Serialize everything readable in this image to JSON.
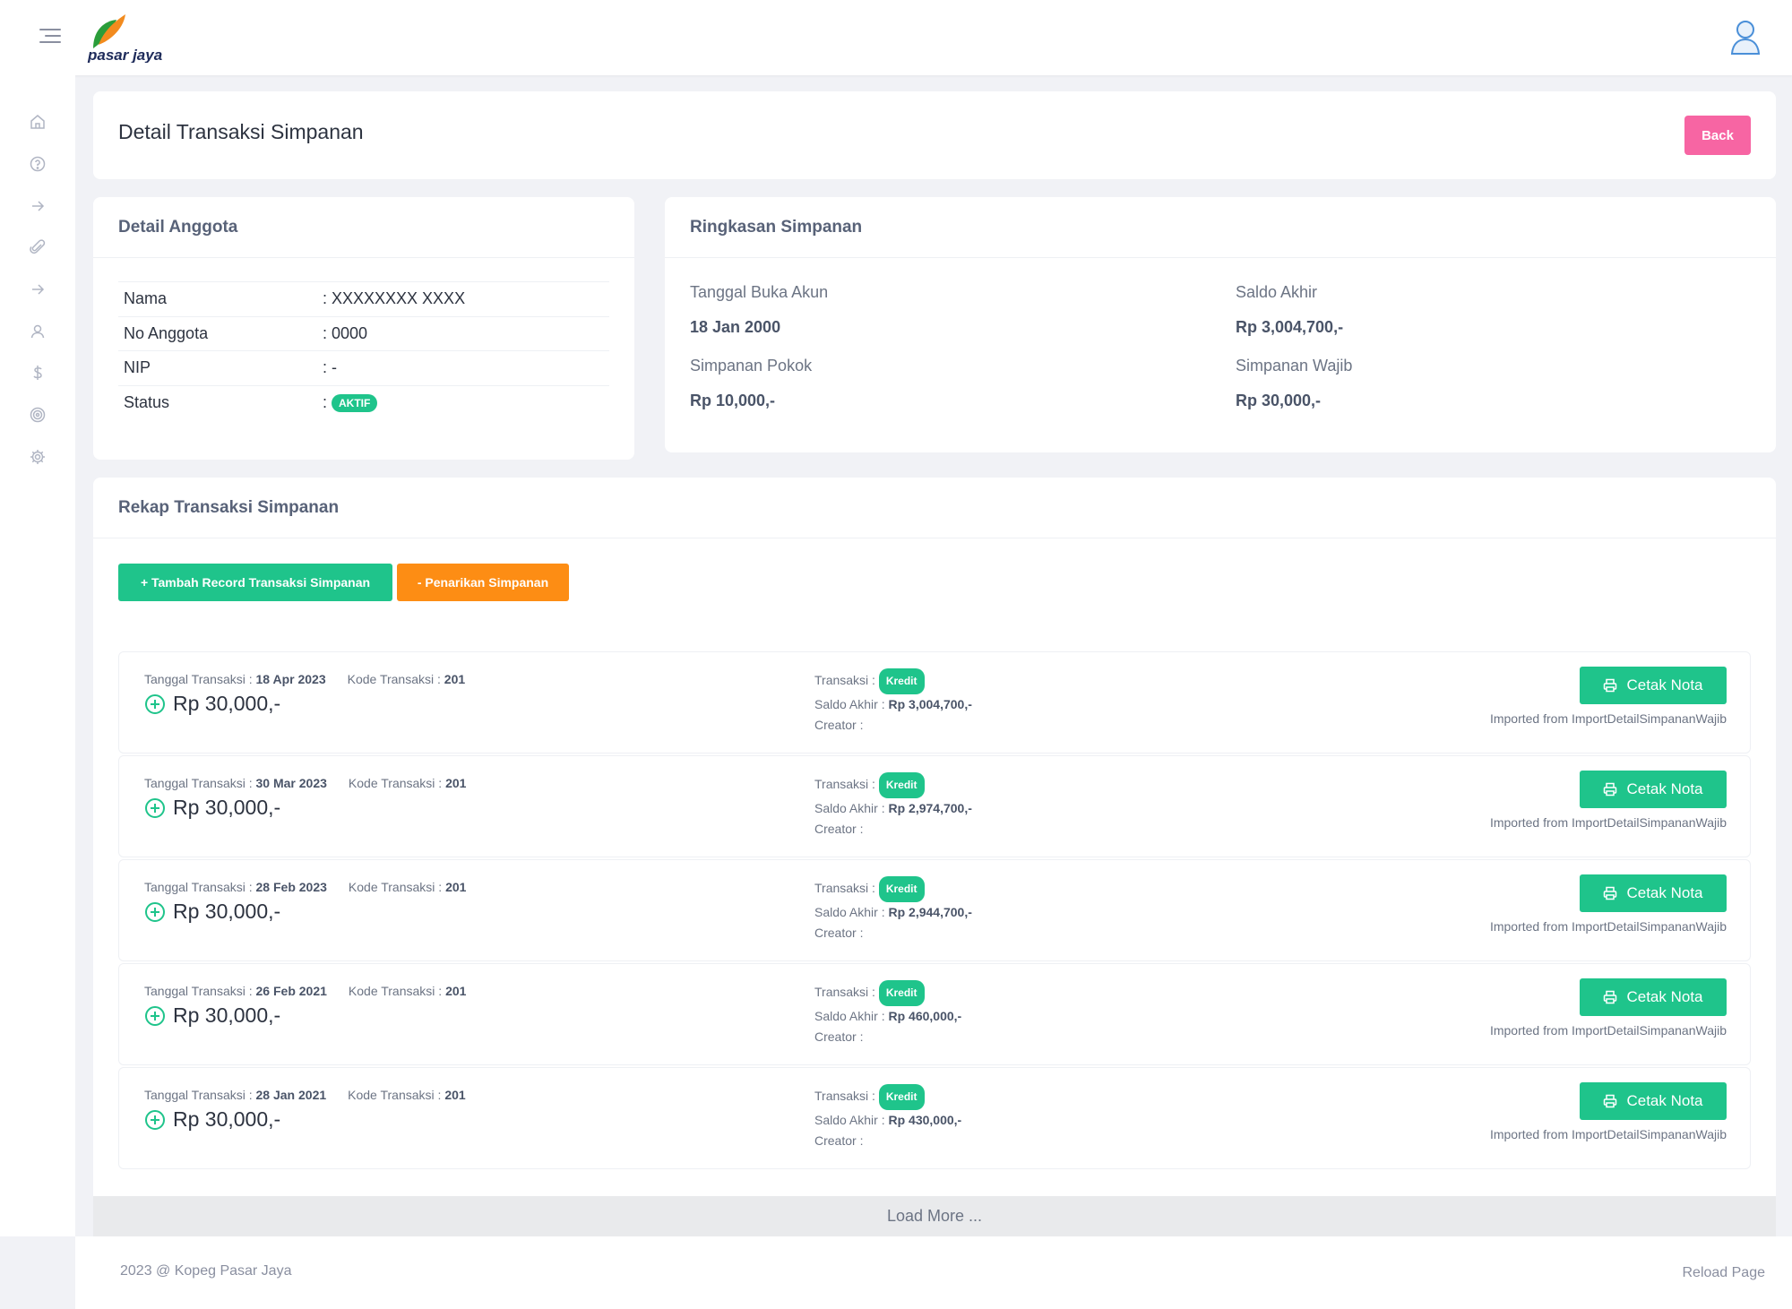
{
  "header": {
    "logo_text": "pasar jaya",
    "logo_colors": {
      "orange": "#f28b1e",
      "green": "#2a9d3a",
      "navy": "#1e2b5a"
    }
  },
  "sidebar": {
    "items": [
      {
        "icon": "home-icon"
      },
      {
        "icon": "help-circle-icon"
      },
      {
        "icon": "arrow-right-icon"
      },
      {
        "icon": "paperclip-icon"
      },
      {
        "icon": "arrow-right-icon"
      },
      {
        "icon": "user-icon"
      },
      {
        "icon": "dollar-icon"
      },
      {
        "icon": "target-icon"
      },
      {
        "icon": "gear-icon"
      }
    ]
  },
  "page": {
    "title": "Detail Transaksi Simpanan",
    "back_label": "Back"
  },
  "member": {
    "heading": "Detail Anggota",
    "rows": [
      {
        "label": "Nama",
        "value": ": XXXXXXXX XXXX"
      },
      {
        "label": "No Anggota",
        "value": ": 0000"
      },
      {
        "label": "NIP",
        "value": ": -"
      },
      {
        "label": "Status",
        "value": ": "
      }
    ],
    "status_badge": "AKTIF"
  },
  "summary": {
    "heading": "Ringkasan Simpanan",
    "open_date_label": "Tanggal Buka Akun",
    "open_date": "18 Jan 2000",
    "final_balance_label": "Saldo Akhir",
    "final_balance": "Rp 3,004,700,-",
    "principal_label": "Simpanan Pokok",
    "principal": "Rp 10,000,-",
    "mandatory_label": "Simpanan Wajib",
    "mandatory": "Rp 30,000,-"
  },
  "rekap": {
    "heading": "Rekap Transaksi Simpanan",
    "add_label": "+ Tambah Record Transaksi Simpanan",
    "withdraw_label": "- Penarikan Simpanan",
    "date_label": "Tanggal Transaksi :",
    "code_label": "Kode Transaksi :",
    "type_label": "Transaksi :",
    "balance_label": "Saldo Akhir :",
    "creator_label": "Creator :",
    "print_label": "Cetak Nota",
    "transactions": [
      {
        "date": "18 Apr 2023",
        "code": "201",
        "amount": "Rp 30,000,-",
        "type": "Kredit",
        "balance": "Rp 3,004,700,-",
        "creator": "",
        "note": "Imported from ImportDetailSimpananWajib"
      },
      {
        "date": "30 Mar 2023",
        "code": "201",
        "amount": "Rp 30,000,-",
        "type": "Kredit",
        "balance": "Rp 2,974,700,-",
        "creator": "",
        "note": "Imported from ImportDetailSimpananWajib"
      },
      {
        "date": "28 Feb 2023",
        "code": "201",
        "amount": "Rp 30,000,-",
        "type": "Kredit",
        "balance": "Rp 2,944,700,-",
        "creator": "",
        "note": "Imported from ImportDetailSimpananWajib"
      },
      {
        "date": "26 Feb 2021",
        "code": "201",
        "amount": "Rp 30,000,-",
        "type": "Kredit",
        "balance": "Rp 460,000,-",
        "creator": "",
        "note": "Imported from ImportDetailSimpananWajib"
      },
      {
        "date": "28 Jan 2021",
        "code": "201",
        "amount": "Rp 30,000,-",
        "type": "Kredit",
        "balance": "Rp 430,000,-",
        "creator": "",
        "note": "Imported from ImportDetailSimpananWajib"
      }
    ],
    "load_more": "Load More ..."
  },
  "footer": {
    "copyright": "2023 @ Kopeg Pasar Jaya",
    "reload": "Reload Page"
  },
  "colors": {
    "green": "#1fc48b",
    "orange": "#fd8d14",
    "pink": "#f765a3",
    "background": "#f1f2f6"
  }
}
